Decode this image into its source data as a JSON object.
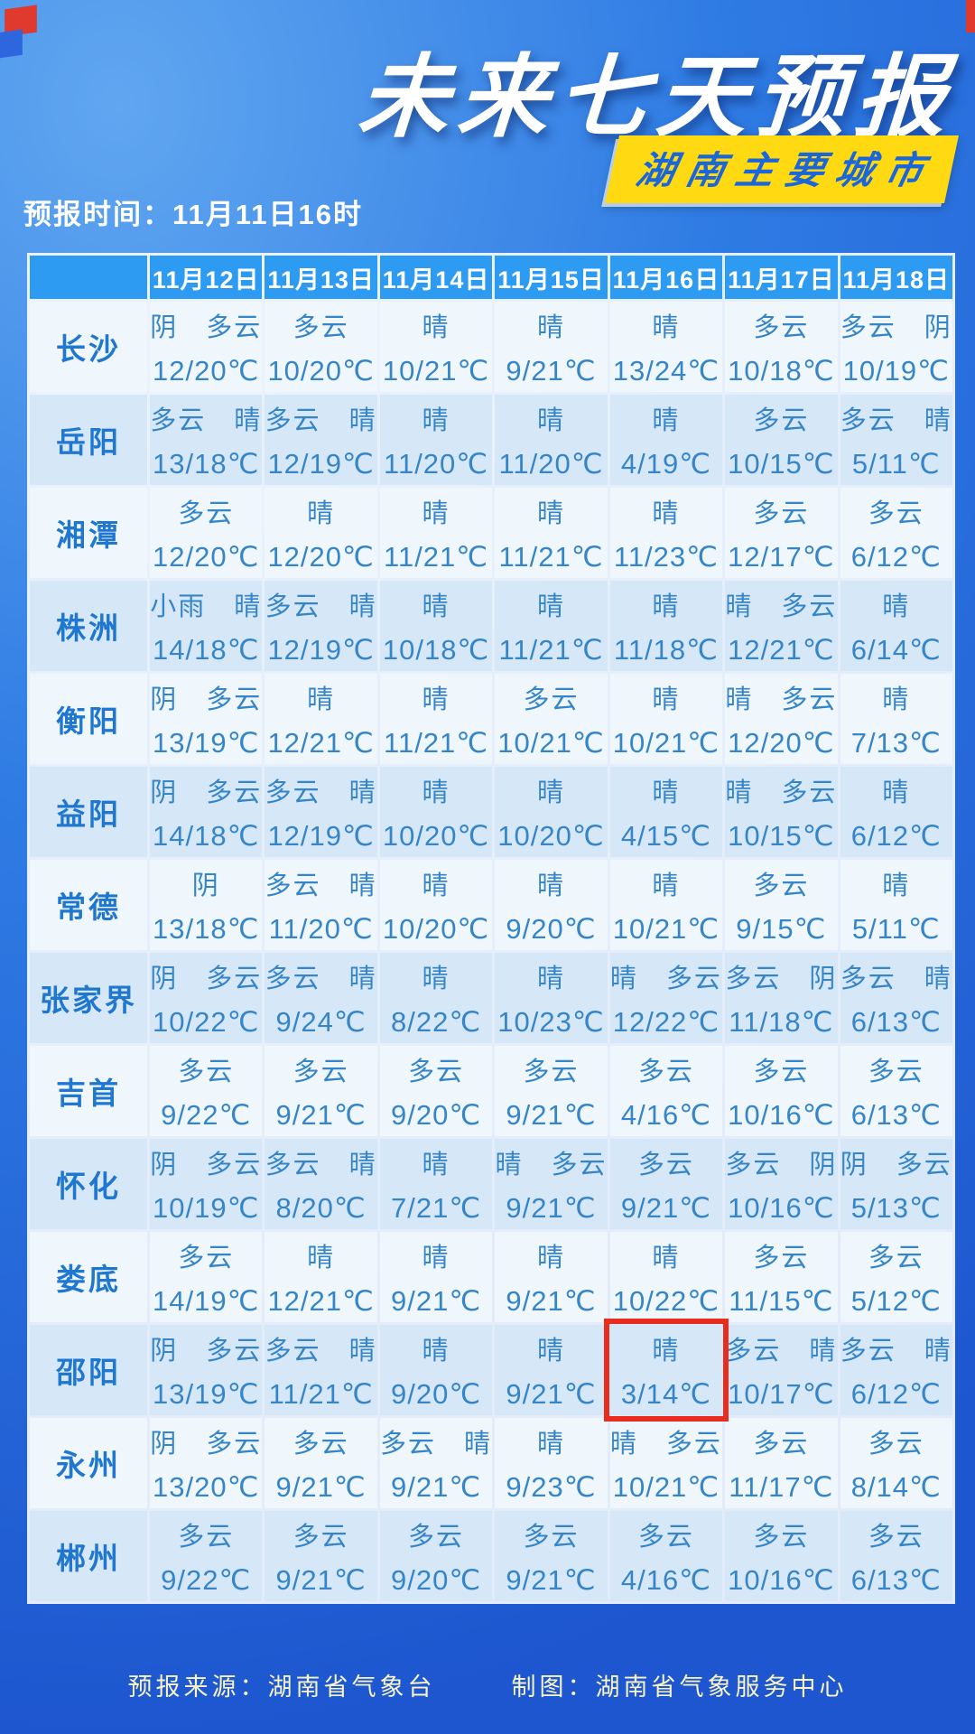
{
  "chart_data": {
    "type": "table",
    "title": "未来七天预报",
    "subtitle": "湖南主要城市",
    "forecast_time": "预报时间：11月11日16时",
    "date_headers": [
      "11月12日",
      "11月13日",
      "11月14日",
      "11月15日",
      "11月16日",
      "11月17日",
      "11月18日"
    ],
    "rows": [
      {
        "city": "长沙",
        "cells": [
          {
            "weather": "阴　多云",
            "temp": "12/20℃"
          },
          {
            "weather": "多云",
            "temp": "10/20℃"
          },
          {
            "weather": "晴",
            "temp": "10/21℃"
          },
          {
            "weather": "晴",
            "temp": "9/21℃"
          },
          {
            "weather": "晴",
            "temp": "13/24℃"
          },
          {
            "weather": "多云",
            "temp": "10/18℃"
          },
          {
            "weather": "多云　阴",
            "temp": "10/19℃"
          }
        ]
      },
      {
        "city": "岳阳",
        "cells": [
          {
            "weather": "多云　晴",
            "temp": "13/18℃"
          },
          {
            "weather": "多云　晴",
            "temp": "12/19℃"
          },
          {
            "weather": "晴",
            "temp": "11/20℃"
          },
          {
            "weather": "晴",
            "temp": "11/20℃"
          },
          {
            "weather": "晴",
            "temp": "4/19℃"
          },
          {
            "weather": "多云",
            "temp": "10/15℃"
          },
          {
            "weather": "多云　晴",
            "temp": "5/11℃"
          }
        ]
      },
      {
        "city": "湘潭",
        "cells": [
          {
            "weather": "多云",
            "temp": "12/20℃"
          },
          {
            "weather": "晴",
            "temp": "12/20℃"
          },
          {
            "weather": "晴",
            "temp": "11/21℃"
          },
          {
            "weather": "晴",
            "temp": "11/21℃"
          },
          {
            "weather": "晴",
            "temp": "11/23℃"
          },
          {
            "weather": "多云",
            "temp": "12/17℃"
          },
          {
            "weather": "多云",
            "temp": "6/12℃"
          }
        ]
      },
      {
        "city": "株洲",
        "cells": [
          {
            "weather": "小雨　晴",
            "temp": "14/18℃"
          },
          {
            "weather": "多云　晴",
            "temp": "12/19℃"
          },
          {
            "weather": "晴",
            "temp": "10/18℃"
          },
          {
            "weather": "晴",
            "temp": "11/21℃"
          },
          {
            "weather": "晴",
            "temp": "11/18℃"
          },
          {
            "weather": "晴　多云",
            "temp": "12/21℃"
          },
          {
            "weather": "晴",
            "temp": "6/14℃"
          }
        ]
      },
      {
        "city": "衡阳",
        "cells": [
          {
            "weather": "阴　多云",
            "temp": "13/19℃"
          },
          {
            "weather": "晴",
            "temp": "12/21℃"
          },
          {
            "weather": "晴",
            "temp": "11/21℃"
          },
          {
            "weather": "多云",
            "temp": "10/21℃"
          },
          {
            "weather": "晴",
            "temp": "10/21℃"
          },
          {
            "weather": "晴　多云",
            "temp": "12/20℃"
          },
          {
            "weather": "晴",
            "temp": "7/13℃"
          }
        ]
      },
      {
        "city": "益阳",
        "cells": [
          {
            "weather": "阴　多云",
            "temp": "14/18℃"
          },
          {
            "weather": "多云　晴",
            "temp": "12/19℃"
          },
          {
            "weather": "晴",
            "temp": "10/20℃"
          },
          {
            "weather": "晴",
            "temp": "10/20℃"
          },
          {
            "weather": "晴",
            "temp": "4/15℃"
          },
          {
            "weather": "晴　多云",
            "temp": "10/15℃"
          },
          {
            "weather": "晴",
            "temp": "6/12℃"
          }
        ]
      },
      {
        "city": "常德",
        "cells": [
          {
            "weather": "阴",
            "temp": "13/18℃"
          },
          {
            "weather": "多云　晴",
            "temp": "11/20℃"
          },
          {
            "weather": "晴",
            "temp": "10/20℃"
          },
          {
            "weather": "晴",
            "temp": "9/20℃"
          },
          {
            "weather": "晴",
            "temp": "10/21℃"
          },
          {
            "weather": "多云",
            "temp": "9/15℃"
          },
          {
            "weather": "晴",
            "temp": "5/11℃"
          }
        ]
      },
      {
        "city": "张家界",
        "cells": [
          {
            "weather": "阴　多云",
            "temp": "10/22℃"
          },
          {
            "weather": "多云　晴",
            "temp": "9/24℃"
          },
          {
            "weather": "晴",
            "temp": "8/22℃"
          },
          {
            "weather": "晴",
            "temp": "10/23℃"
          },
          {
            "weather": "晴　多云",
            "temp": "12/22℃"
          },
          {
            "weather": "多云　阴",
            "temp": "11/18℃"
          },
          {
            "weather": "多云　晴",
            "temp": "6/13℃"
          }
        ]
      },
      {
        "city": "吉首",
        "cells": [
          {
            "weather": "多云",
            "temp": "9/22℃"
          },
          {
            "weather": "多云",
            "temp": "9/21℃"
          },
          {
            "weather": "多云",
            "temp": "9/20℃"
          },
          {
            "weather": "多云",
            "temp": "9/21℃"
          },
          {
            "weather": "多云",
            "temp": "4/16℃"
          },
          {
            "weather": "多云",
            "temp": "10/16℃"
          },
          {
            "weather": "多云",
            "temp": "6/13℃"
          }
        ]
      },
      {
        "city": "怀化",
        "cells": [
          {
            "weather": "阴　多云",
            "temp": "10/19℃"
          },
          {
            "weather": "多云　晴",
            "temp": "8/20℃"
          },
          {
            "weather": "晴",
            "temp": "7/21℃"
          },
          {
            "weather": "晴　多云",
            "temp": "9/21℃"
          },
          {
            "weather": "多云",
            "temp": "9/21℃"
          },
          {
            "weather": "多云　阴",
            "temp": "10/16℃"
          },
          {
            "weather": "阴　多云",
            "temp": "5/13℃"
          }
        ]
      },
      {
        "city": "娄底",
        "cells": [
          {
            "weather": "多云",
            "temp": "14/19℃"
          },
          {
            "weather": "晴",
            "temp": "12/21℃"
          },
          {
            "weather": "晴",
            "temp": "9/21℃"
          },
          {
            "weather": "晴",
            "temp": "9/21℃"
          },
          {
            "weather": "晴",
            "temp": "10/22℃"
          },
          {
            "weather": "多云",
            "temp": "11/15℃"
          },
          {
            "weather": "多云",
            "temp": "5/12℃"
          }
        ]
      },
      {
        "city": "邵阳",
        "cells": [
          {
            "weather": "阴　多云",
            "temp": "13/19℃"
          },
          {
            "weather": "多云　晴",
            "temp": "11/21℃"
          },
          {
            "weather": "晴",
            "temp": "9/20℃"
          },
          {
            "weather": "晴",
            "temp": "9/21℃"
          },
          {
            "weather": "晴",
            "temp": "3/14℃"
          },
          {
            "weather": "多云　晴",
            "temp": "10/17℃"
          },
          {
            "weather": "多云　晴",
            "temp": "6/12℃"
          }
        ]
      },
      {
        "city": "永州",
        "cells": [
          {
            "weather": "阴　多云",
            "temp": "13/20℃"
          },
          {
            "weather": "多云",
            "temp": "9/21℃"
          },
          {
            "weather": "多云　晴",
            "temp": "9/21℃"
          },
          {
            "weather": "晴",
            "temp": "9/23℃"
          },
          {
            "weather": "晴　多云",
            "temp": "10/21℃"
          },
          {
            "weather": "多云",
            "temp": "11/17℃"
          },
          {
            "weather": "多云",
            "temp": "8/14℃"
          }
        ]
      },
      {
        "city": "郴州",
        "cells": [
          {
            "weather": "多云",
            "temp": "9/22℃"
          },
          {
            "weather": "多云",
            "temp": "9/21℃"
          },
          {
            "weather": "多云",
            "temp": "9/20℃"
          },
          {
            "weather": "多云",
            "temp": "9/21℃"
          },
          {
            "weather": "多云",
            "temp": "4/16℃"
          },
          {
            "weather": "多云",
            "temp": "10/16℃"
          },
          {
            "weather": "多云",
            "temp": "6/13℃"
          }
        ]
      }
    ],
    "highlight": {
      "city": "邵阳",
      "date": "11月16日"
    }
  },
  "footer": {
    "source": "预报来源：湖南省气象台",
    "credit": "制图：湖南省气象服务中心"
  },
  "colors": {
    "background_top": "#60a6f0",
    "background_bottom": "#1d56cf",
    "header_blue": "#2e9bf2",
    "row_light": "#eff7fd",
    "row_shade": "#d6e8f8",
    "cell_text": "#3585c8",
    "city_text": "#2077d0",
    "subtitle_bg": "#ffd912",
    "subtitle_text": "#1b66d9",
    "highlight_red": "#e82c1e",
    "footer_text": "#f9f4c8"
  }
}
